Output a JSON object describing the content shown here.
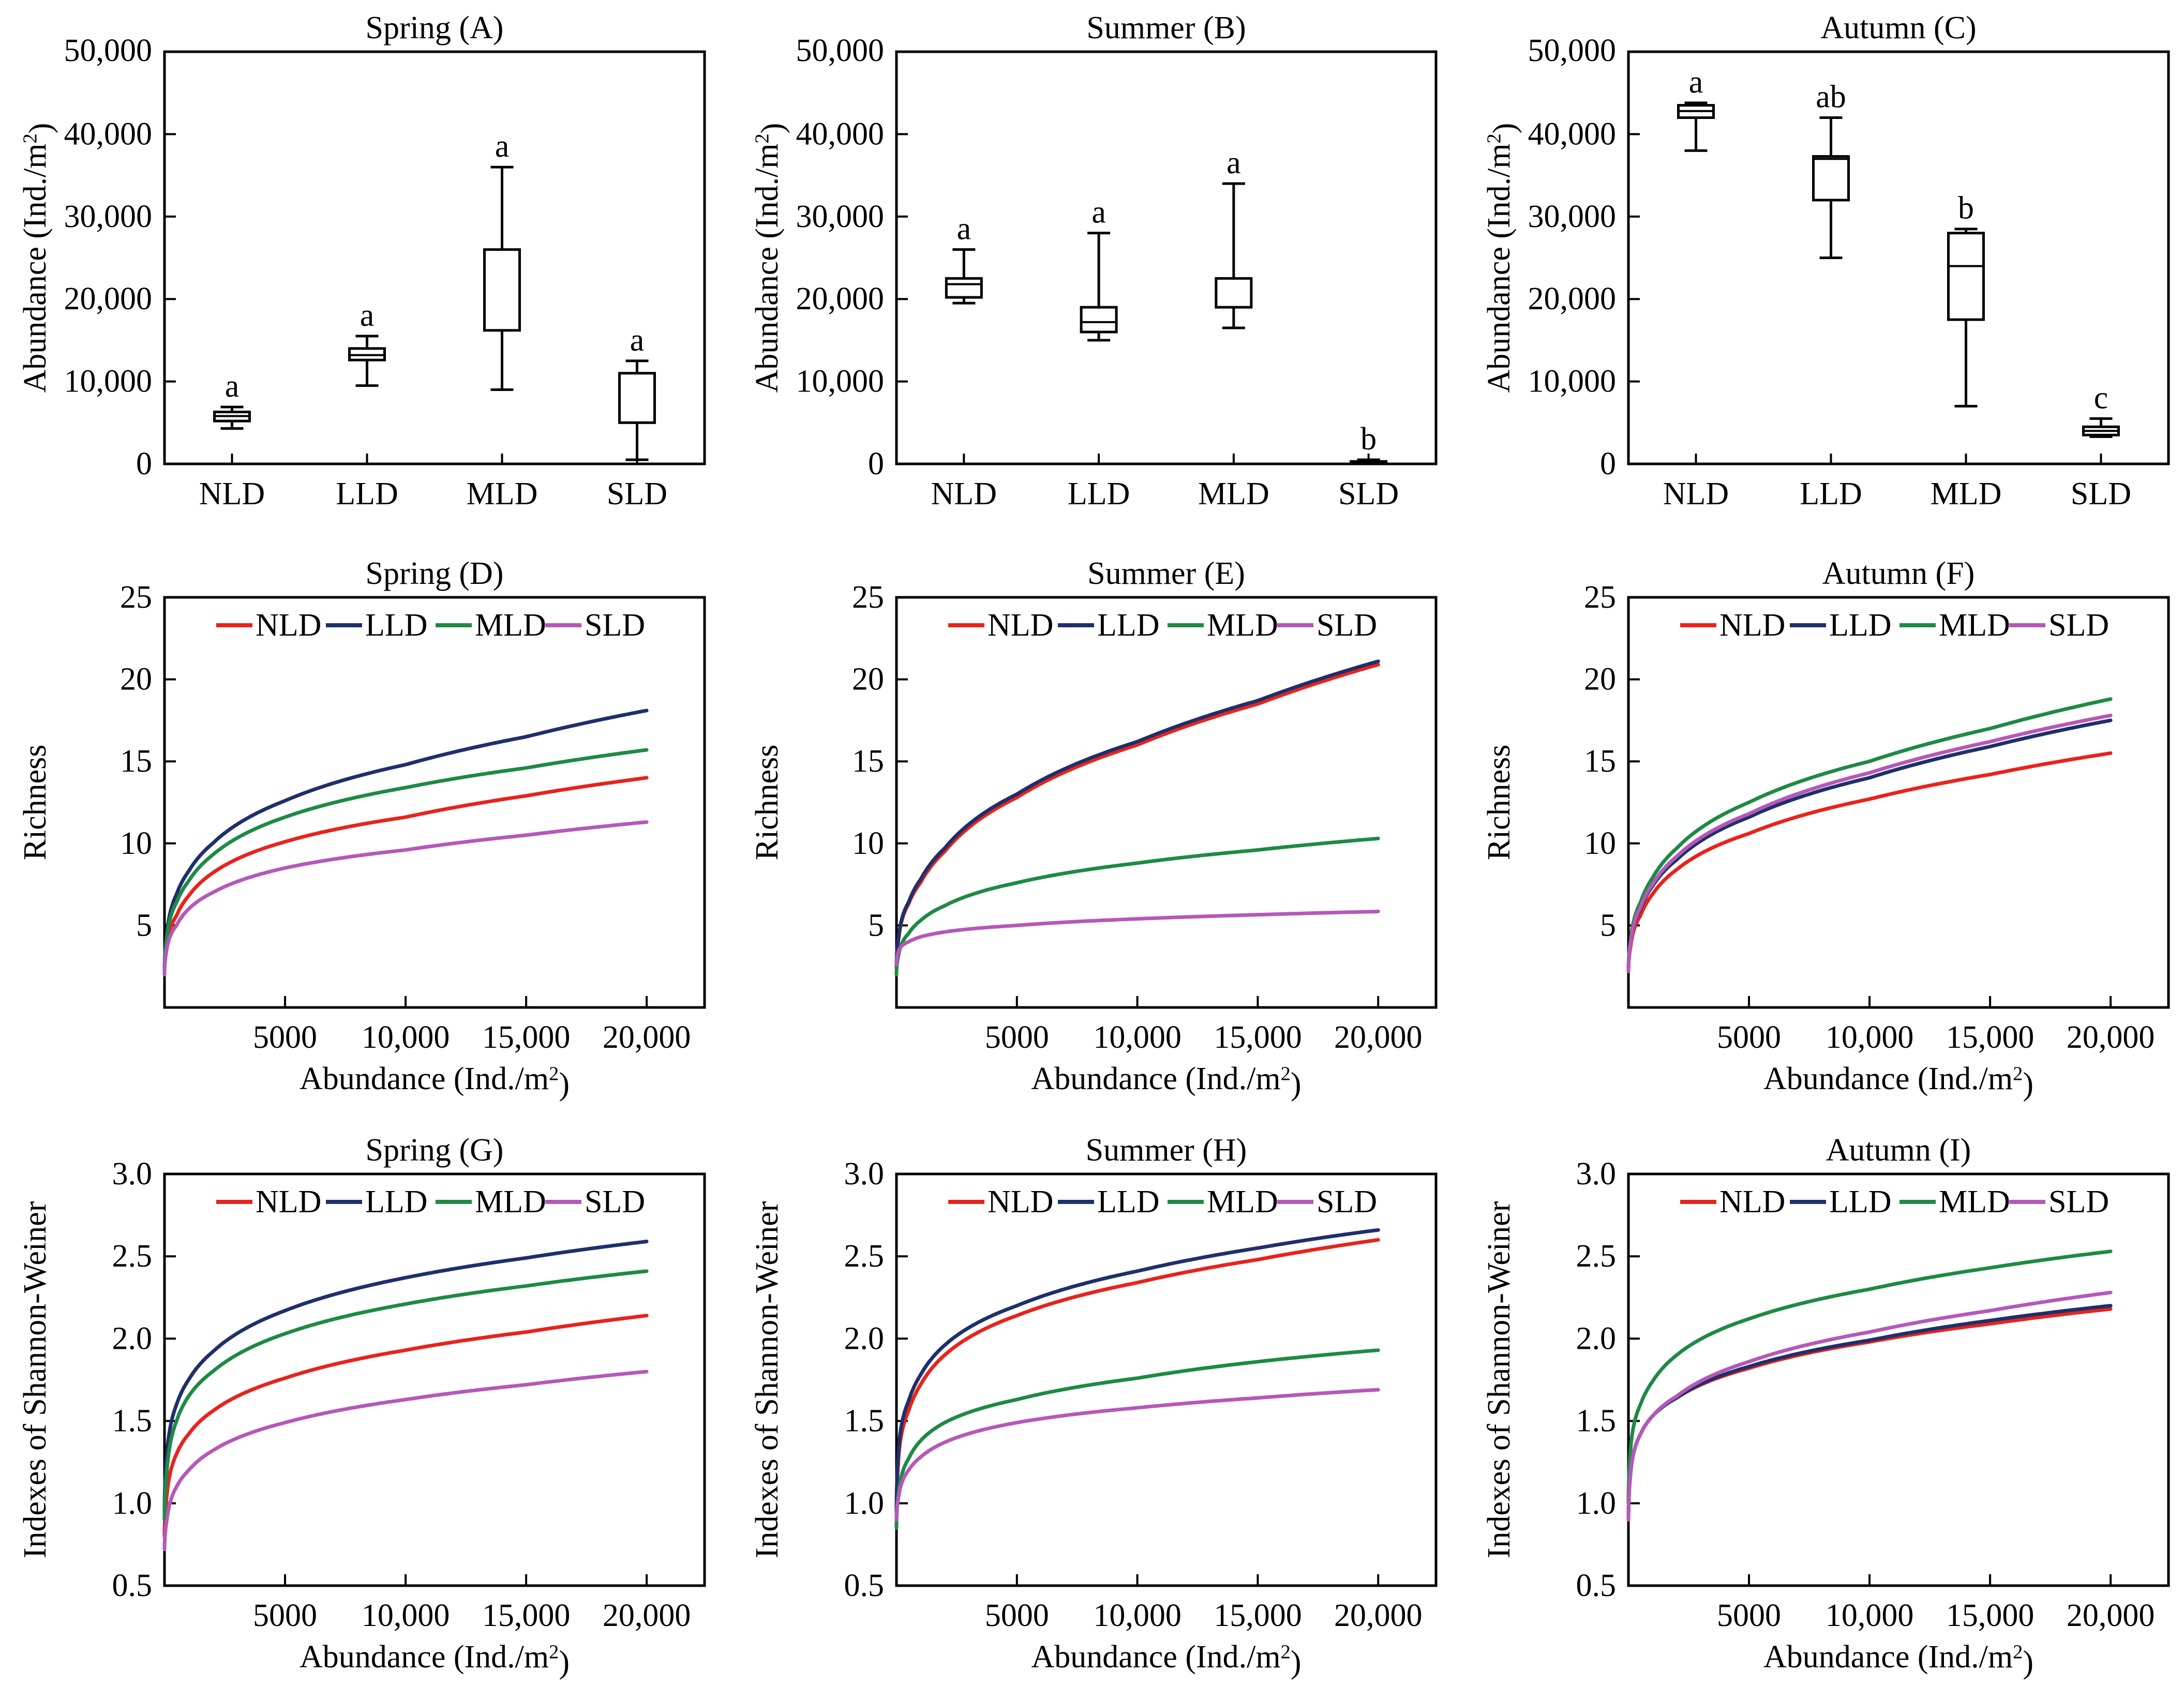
{
  "figure": {
    "panels_count": 9
  },
  "chart_data": [
    {
      "id": "A",
      "type": "box",
      "title": "Spring (A)",
      "ylabel": "Abundance (Ind./m",
      "ylabel_sup": "2",
      "ylabel_end": ")",
      "ylim": [
        0,
        50000
      ],
      "yticks": [
        0,
        10000,
        20000,
        30000,
        40000,
        50000
      ],
      "ytick_labels": [
        "0",
        "10,000",
        "20,000",
        "30,000",
        "40,000",
        "50,000"
      ],
      "categories": [
        "NLD",
        "LLD",
        "MLD",
        "SLD"
      ],
      "boxes": [
        {
          "min": 4300,
          "q1": 5200,
          "median": 5800,
          "q3": 6300,
          "max": 6900,
          "label": "a"
        },
        {
          "min": 9500,
          "q1": 12600,
          "median": 13200,
          "q3": 14000,
          "max": 15500,
          "label": "a"
        },
        {
          "min": 9000,
          "q1": 16200,
          "median": 16200,
          "q3": 26000,
          "max": 36000,
          "label": "a"
        },
        {
          "min": 500,
          "q1": 5000,
          "median": 5000,
          "q3": 11000,
          "max": 12500,
          "label": "a"
        }
      ]
    },
    {
      "id": "B",
      "type": "box",
      "title": "Summer (B)",
      "ylabel": "Abundance (Ind./m",
      "ylabel_sup": "2",
      "ylabel_end": ")",
      "ylim": [
        0,
        50000
      ],
      "yticks": [
        0,
        10000,
        20000,
        30000,
        40000,
        50000
      ],
      "ytick_labels": [
        "0",
        "10,000",
        "20,000",
        "30,000",
        "40,000",
        "50,000"
      ],
      "categories": [
        "NLD",
        "LLD",
        "MLD",
        "SLD"
      ],
      "boxes": [
        {
          "min": 19500,
          "q1": 20200,
          "median": 21800,
          "q3": 22500,
          "max": 26000,
          "label": "a"
        },
        {
          "min": 15000,
          "q1": 16000,
          "median": 17200,
          "q3": 19000,
          "max": 28000,
          "label": "a"
        },
        {
          "min": 16500,
          "q1": 19000,
          "median": 19000,
          "q3": 22500,
          "max": 34000,
          "label": "a"
        },
        {
          "min": 0,
          "q1": 100,
          "median": 200,
          "q3": 300,
          "max": 500,
          "label": "b"
        }
      ]
    },
    {
      "id": "C",
      "type": "box",
      "title": "Autumn (C)",
      "ylabel": "Abundance (Ind./m",
      "ylabel_sup": "2",
      "ylabel_end": ")",
      "ylim": [
        0,
        50000
      ],
      "yticks": [
        0,
        10000,
        20000,
        30000,
        40000,
        50000
      ],
      "ytick_labels": [
        "0",
        "10,000",
        "20,000",
        "30,000",
        "40,000",
        "50,000"
      ],
      "categories": [
        "NLD",
        "LLD",
        "MLD",
        "SLD"
      ],
      "boxes": [
        {
          "min": 38000,
          "q1": 42000,
          "median": 42800,
          "q3": 43500,
          "max": 43800,
          "label": "a"
        },
        {
          "min": 25000,
          "q1": 32000,
          "median": 37000,
          "q3": 37300,
          "max": 42000,
          "label": "ab"
        },
        {
          "min": 7000,
          "q1": 17500,
          "median": 24000,
          "q3": 28000,
          "max": 28500,
          "label": "b"
        },
        {
          "min": 3300,
          "q1": 3500,
          "median": 4000,
          "q3": 4500,
          "max": 5500,
          "label": "c"
        }
      ]
    },
    {
      "id": "D",
      "type": "line",
      "title": "Spring (D)",
      "ylabel": "Richness",
      "xlabel": "Abundance (Ind./m",
      "xlabel_sup": "2",
      "xlabel_end": ")",
      "xlim": [
        0,
        22400
      ],
      "ylim": [
        0,
        25
      ],
      "xticks": [
        5000,
        10000,
        15000,
        20000
      ],
      "xtick_labels": [
        "5000",
        "10,000",
        "15,000",
        "20,000"
      ],
      "yticks": [
        5,
        10,
        15,
        20,
        25
      ],
      "ytick_labels": [
        "5",
        "10",
        "15",
        "20",
        "25"
      ],
      "legend": [
        "NLD",
        "LLD",
        "MLD",
        "SLD"
      ],
      "series": [
        {
          "name": "NLD",
          "color": "#e8231c",
          "x": [
            0,
            100,
            500,
            1000,
            2000,
            5000,
            10000,
            15000,
            20000
          ],
          "values": [
            2.1,
            3.8,
            5.6,
            6.8,
            8.2,
            10.1,
            11.6,
            12.9,
            14.0
          ]
        },
        {
          "name": "LLD",
          "color": "#1f2f6b",
          "x": [
            0,
            100,
            500,
            1000,
            2000,
            5000,
            10000,
            15000,
            20000
          ],
          "values": [
            2.2,
            4.5,
            6.9,
            8.3,
            10.0,
            12.6,
            14.8,
            16.5,
            18.1
          ]
        },
        {
          "name": "MLD",
          "color": "#1e8a44",
          "x": [
            0,
            100,
            500,
            1000,
            2000,
            5000,
            10000,
            15000,
            20000
          ],
          "values": [
            2.2,
            4.3,
            6.4,
            7.7,
            9.3,
            11.6,
            13.4,
            14.6,
            15.7
          ]
        },
        {
          "name": "SLD",
          "color": "#b558b8",
          "x": [
            0,
            100,
            500,
            1000,
            2000,
            5000,
            10000,
            15000,
            20000
          ],
          "values": [
            2.0,
            3.6,
            5.0,
            6.0,
            7.0,
            8.5,
            9.6,
            10.5,
            11.3
          ]
        }
      ]
    },
    {
      "id": "E",
      "type": "line",
      "title": "Summer (E)",
      "ylabel": "Richness",
      "xlabel": "Abundance (Ind./m",
      "xlabel_sup": "2",
      "xlabel_end": ")",
      "xlim": [
        0,
        22400
      ],
      "ylim": [
        0,
        25
      ],
      "xticks": [
        5000,
        10000,
        15000,
        20000
      ],
      "xtick_labels": [
        "5000",
        "10,000",
        "15,000",
        "20,000"
      ],
      "yticks": [
        5,
        10,
        15,
        20,
        25
      ],
      "ytick_labels": [
        "5",
        "10",
        "15",
        "20",
        "25"
      ],
      "legend": [
        "NLD",
        "LLD",
        "MLD",
        "SLD"
      ],
      "series": [
        {
          "name": "NLD",
          "color": "#e8231c",
          "x": [
            0,
            100,
            500,
            1000,
            2000,
            5000,
            10000,
            15000,
            20000
          ],
          "values": [
            2.4,
            4.3,
            6.3,
            7.6,
            9.5,
            12.8,
            16.0,
            18.5,
            20.9
          ]
        },
        {
          "name": "LLD",
          "color": "#1f2f6b",
          "x": [
            0,
            100,
            500,
            1000,
            2000,
            5000,
            10000,
            15000,
            20000
          ],
          "values": [
            2.5,
            4.4,
            6.4,
            7.8,
            9.7,
            13.0,
            16.2,
            18.7,
            21.1
          ]
        },
        {
          "name": "MLD",
          "color": "#1e8a44",
          "x": [
            0,
            100,
            500,
            1000,
            2000,
            5000,
            10000,
            15000,
            20000
          ],
          "values": [
            2.0,
            3.3,
            4.5,
            5.3,
            6.2,
            7.6,
            8.8,
            9.6,
            10.3
          ]
        },
        {
          "name": "SLD",
          "color": "#b558b8",
          "x": [
            0,
            100,
            500,
            1000,
            2000,
            5000,
            10000,
            15000,
            20000
          ],
          "values": [
            2.6,
            3.5,
            4.0,
            4.3,
            4.6,
            5.0,
            5.4,
            5.65,
            5.85
          ]
        }
      ]
    },
    {
      "id": "F",
      "type": "line",
      "title": "Autumn (F)",
      "ylabel": "Richness",
      "xlabel": "Abundance (Ind./m",
      "xlabel_sup": "2",
      "xlabel_end": ")",
      "xlim": [
        0,
        22400
      ],
      "ylim": [
        0,
        25
      ],
      "xticks": [
        5000,
        10000,
        15000,
        20000
      ],
      "xtick_labels": [
        "5000",
        "10,000",
        "15,000",
        "20,000"
      ],
      "yticks": [
        5,
        10,
        15,
        20,
        25
      ],
      "ytick_labels": [
        "5",
        "10",
        "15",
        "20",
        "25"
      ],
      "legend": [
        "NLD",
        "LLD",
        "MLD",
        "SLD"
      ],
      "series": [
        {
          "name": "NLD",
          "color": "#e8231c",
          "x": [
            0,
            100,
            500,
            1000,
            2000,
            5000,
            10000,
            15000,
            20000
          ],
          "values": [
            2.2,
            3.8,
            5.6,
            6.9,
            8.4,
            10.6,
            12.7,
            14.2,
            15.5
          ]
        },
        {
          "name": "LLD",
          "color": "#1f2f6b",
          "x": [
            0,
            100,
            500,
            1000,
            2000,
            5000,
            10000,
            15000,
            20000
          ],
          "values": [
            2.2,
            4.0,
            6.0,
            7.4,
            9.0,
            11.6,
            14.0,
            15.9,
            17.5
          ]
        },
        {
          "name": "MLD",
          "color": "#1e8a44",
          "x": [
            0,
            100,
            500,
            1000,
            2000,
            5000,
            10000,
            15000,
            20000
          ],
          "values": [
            2.3,
            4.2,
            6.4,
            7.9,
            9.7,
            12.5,
            15.0,
            17.0,
            18.8
          ]
        },
        {
          "name": "SLD",
          "color": "#b558b8",
          "x": [
            0,
            100,
            500,
            1000,
            2000,
            5000,
            10000,
            15000,
            20000
          ],
          "values": [
            2.2,
            4.0,
            6.1,
            7.5,
            9.2,
            11.8,
            14.3,
            16.2,
            17.8
          ]
        }
      ]
    },
    {
      "id": "G",
      "type": "line",
      "title": "Spring (G)",
      "ylabel": "Indexes of Shannon-Weiner",
      "xlabel": "Abundance (Ind./m",
      "xlabel_sup": "2",
      "xlabel_end": ")",
      "xlim": [
        0,
        22400
      ],
      "ylim": [
        0.5,
        3.0
      ],
      "xticks": [
        5000,
        10000,
        15000,
        20000
      ],
      "xtick_labels": [
        "5000",
        "10,000",
        "15,000",
        "20,000"
      ],
      "yticks": [
        0.5,
        1.0,
        1.5,
        2.0,
        2.5,
        3.0
      ],
      "ytick_labels": [
        "0.5",
        "1.0",
        "1.5",
        "2.0",
        "2.5",
        "3.0"
      ],
      "legend": [
        "NLD",
        "LLD",
        "MLD",
        "SLD"
      ],
      "series": [
        {
          "name": "NLD",
          "color": "#e8231c",
          "x": [
            0,
            100,
            500,
            1000,
            2000,
            5000,
            10000,
            15000,
            20000
          ],
          "values": [
            0.8,
            1.05,
            1.3,
            1.42,
            1.56,
            1.76,
            1.93,
            2.04,
            2.14
          ]
        },
        {
          "name": "LLD",
          "color": "#1f2f6b",
          "x": [
            0,
            100,
            500,
            1000,
            2000,
            5000,
            10000,
            15000,
            20000
          ],
          "values": [
            0.95,
            1.3,
            1.6,
            1.75,
            1.92,
            2.17,
            2.37,
            2.49,
            2.59
          ]
        },
        {
          "name": "MLD",
          "color": "#1e8a44",
          "x": [
            0,
            100,
            500,
            1000,
            2000,
            5000,
            10000,
            15000,
            20000
          ],
          "values": [
            0.9,
            1.2,
            1.5,
            1.65,
            1.8,
            2.03,
            2.21,
            2.32,
            2.41
          ]
        },
        {
          "name": "SLD",
          "color": "#b558b8",
          "x": [
            0,
            100,
            500,
            1000,
            2000,
            5000,
            10000,
            15000,
            20000
          ],
          "values": [
            0.72,
            0.9,
            1.1,
            1.2,
            1.32,
            1.49,
            1.63,
            1.72,
            1.8
          ]
        }
      ]
    },
    {
      "id": "H",
      "type": "line",
      "title": "Summer (H)",
      "ylabel": "Indexes of Shannon-Weiner",
      "xlabel": "Abundance (Ind./m",
      "xlabel_sup": "2",
      "xlabel_end": ")",
      "xlim": [
        0,
        22400
      ],
      "ylim": [
        0.5,
        3.0
      ],
      "xticks": [
        5000,
        10000,
        15000,
        20000
      ],
      "xtick_labels": [
        "5000",
        "10,000",
        "15,000",
        "20,000"
      ],
      "yticks": [
        0.5,
        1.0,
        1.5,
        2.0,
        2.5,
        3.0
      ],
      "ytick_labels": [
        "0.5",
        "1.0",
        "1.5",
        "2.0",
        "2.5",
        "3.0"
      ],
      "legend": [
        "NLD",
        "LLD",
        "MLD",
        "SLD"
      ],
      "series": [
        {
          "name": "NLD",
          "color": "#e8231c",
          "x": [
            0,
            100,
            500,
            1000,
            2000,
            5000,
            10000,
            15000,
            20000
          ],
          "values": [
            0.92,
            1.3,
            1.56,
            1.72,
            1.9,
            2.14,
            2.34,
            2.48,
            2.6
          ]
        },
        {
          "name": "LLD",
          "color": "#1f2f6b",
          "x": [
            0,
            100,
            500,
            1000,
            2000,
            5000,
            10000,
            15000,
            20000
          ],
          "values": [
            0.95,
            1.35,
            1.62,
            1.78,
            1.96,
            2.2,
            2.41,
            2.55,
            2.66
          ]
        },
        {
          "name": "MLD",
          "color": "#1e8a44",
          "x": [
            0,
            100,
            500,
            1000,
            2000,
            5000,
            10000,
            15000,
            20000
          ],
          "values": [
            0.85,
            1.08,
            1.27,
            1.38,
            1.49,
            1.63,
            1.76,
            1.86,
            1.93
          ]
        },
        {
          "name": "SLD",
          "color": "#b558b8",
          "x": [
            0,
            100,
            500,
            1000,
            2000,
            5000,
            10000,
            15000,
            20000
          ],
          "values": [
            0.9,
            1.05,
            1.2,
            1.28,
            1.37,
            1.49,
            1.58,
            1.64,
            1.69
          ]
        }
      ]
    },
    {
      "id": "I",
      "type": "line",
      "title": "Autumn (I)",
      "ylabel": "Indexes of Shannon-Weiner",
      "xlabel": "Abundance (Ind./m",
      "xlabel_sup": "2",
      "xlabel_end": ")",
      "xlim": [
        0,
        22400
      ],
      "ylim": [
        0.5,
        3.0
      ],
      "xticks": [
        5000,
        10000,
        15000,
        20000
      ],
      "xtick_labels": [
        "5000",
        "10,000",
        "15,000",
        "20,000"
      ],
      "yticks": [
        0.5,
        1.0,
        1.5,
        2.0,
        2.5,
        3.0
      ],
      "ytick_labels": [
        "0.5",
        "1.0",
        "1.5",
        "2.0",
        "2.5",
        "3.0"
      ],
      "legend": [
        "NLD",
        "LLD",
        "MLD",
        "SLD"
      ],
      "series": [
        {
          "name": "NLD",
          "color": "#e8231c",
          "x": [
            0,
            100,
            500,
            1000,
            2000,
            5000,
            10000,
            15000,
            20000
          ],
          "values": [
            0.9,
            1.2,
            1.42,
            1.53,
            1.64,
            1.82,
            1.98,
            2.09,
            2.18
          ]
        },
        {
          "name": "LLD",
          "color": "#1f2f6b",
          "x": [
            0,
            100,
            500,
            1000,
            2000,
            5000,
            10000,
            15000,
            20000
          ],
          "values": [
            0.9,
            1.2,
            1.42,
            1.53,
            1.64,
            1.83,
            1.99,
            2.11,
            2.2
          ]
        },
        {
          "name": "MLD",
          "color": "#1e8a44",
          "x": [
            0,
            100,
            500,
            1000,
            2000,
            5000,
            10000,
            15000,
            20000
          ],
          "values": [
            1.0,
            1.35,
            1.6,
            1.74,
            1.9,
            2.12,
            2.3,
            2.43,
            2.53
          ]
        },
        {
          "name": "SLD",
          "color": "#b558b8",
          "x": [
            0,
            100,
            500,
            1000,
            2000,
            5000,
            10000,
            15000,
            20000
          ],
          "values": [
            0.9,
            1.2,
            1.42,
            1.53,
            1.65,
            1.86,
            2.04,
            2.17,
            2.28
          ]
        }
      ]
    }
  ]
}
